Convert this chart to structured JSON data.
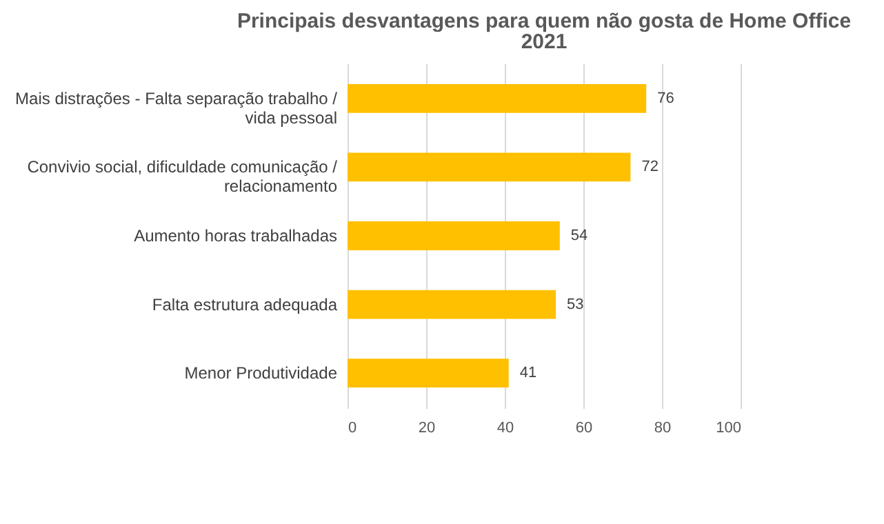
{
  "chart_data": {
    "type": "bar",
    "orientation": "horizontal",
    "title": "Principais desvantagens para quem não gosta de Home Office",
    "subtitle": "2021",
    "categories": [
      "Mais distrações - Falta separação trabalho / vida pessoal",
      "Convivio social, dificuldade comunicação / relacionamento",
      "Aumento horas trabalhadas",
      "Falta estrutura adequada",
      "Menor Produtividade"
    ],
    "values": [
      76,
      72,
      54,
      53,
      41
    ],
    "color": "#ffc000",
    "xlim": [
      0,
      100
    ],
    "xticks": [
      0,
      20,
      40,
      60,
      80,
      100
    ],
    "grid": "x",
    "data_labels": true
  }
}
